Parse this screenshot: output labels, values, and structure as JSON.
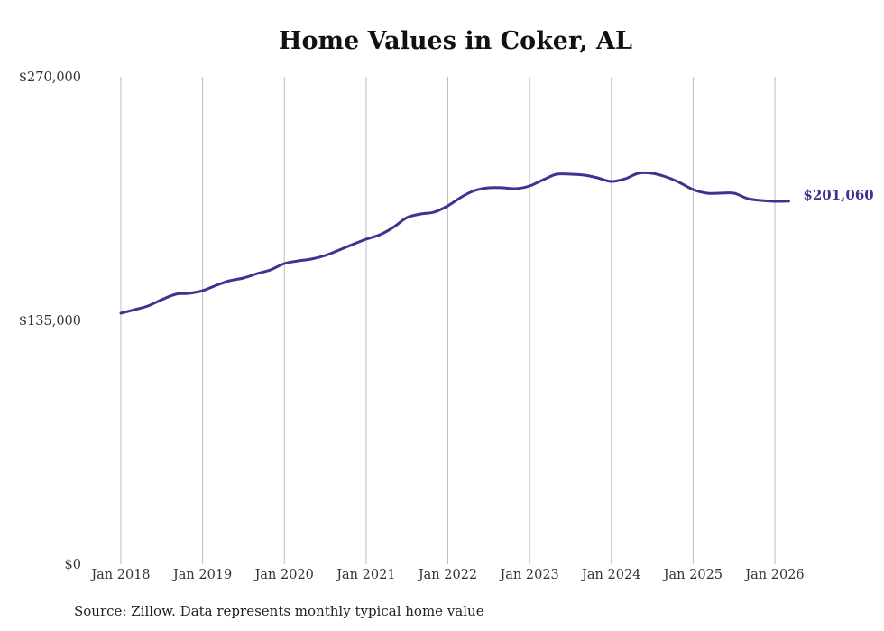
{
  "chart_data": {
    "type": "line",
    "title": "Home Values in Coker, AL",
    "source": "Source: Zillow. Data represents monthly typical home value",
    "xlabel": "",
    "ylabel": "",
    "ylim": [
      0,
      270000
    ],
    "y_ticks": [
      {
        "value": 0,
        "label": "$0"
      },
      {
        "value": 135000,
        "label": "$135,000"
      },
      {
        "value": 270000,
        "label": "$270,000"
      }
    ],
    "x_ticks": [
      {
        "value": 2018.0,
        "label": "Jan 2018"
      },
      {
        "value": 2019.0,
        "label": "Jan 2019"
      },
      {
        "value": 2020.0,
        "label": "Jan 2020"
      },
      {
        "value": 2021.0,
        "label": "Jan 2021"
      },
      {
        "value": 2022.0,
        "label": "Jan 2022"
      },
      {
        "value": 2023.0,
        "label": "Jan 2023"
      },
      {
        "value": 2024.0,
        "label": "Jan 2024"
      },
      {
        "value": 2025.0,
        "label": "Jan 2025"
      },
      {
        "value": 2026.0,
        "label": "Jan 2026"
      }
    ],
    "grid": "vertical",
    "line_color": "#3b3591",
    "end_label": "$201,060",
    "series": [
      {
        "x": [
          2018.0,
          2018.17,
          2018.33,
          2018.5,
          2018.67,
          2018.83,
          2019.0,
          2019.17,
          2019.33,
          2019.5,
          2019.67,
          2019.83,
          2020.0,
          2020.17,
          2020.33,
          2020.5,
          2020.67,
          2020.83,
          2021.0,
          2021.17,
          2021.33,
          2021.5,
          2021.67,
          2021.83,
          2022.0,
          2022.17,
          2022.33,
          2022.5,
          2022.67,
          2022.83,
          2023.0,
          2023.17,
          2023.33,
          2023.5,
          2023.67,
          2023.83,
          2024.0,
          2024.17,
          2024.33,
          2024.5,
          2024.67,
          2024.83,
          2025.0,
          2025.17,
          2025.33,
          2025.5,
          2025.67,
          2025.83,
          2026.0,
          2026.17
        ],
        "values": [
          139000,
          141000,
          143000,
          146500,
          149500,
          150000,
          151500,
          154500,
          157000,
          158500,
          161000,
          163000,
          166500,
          168000,
          169000,
          171000,
          174000,
          177000,
          180000,
          182500,
          186500,
          192000,
          194000,
          195000,
          198500,
          203500,
          207000,
          208500,
          208500,
          208000,
          209500,
          213000,
          216000,
          216000,
          215500,
          214000,
          212000,
          213500,
          216500,
          216500,
          214500,
          211500,
          207500,
          205500,
          205500,
          205500,
          202500,
          201500,
          201000,
          201060
        ]
      }
    ]
  }
}
